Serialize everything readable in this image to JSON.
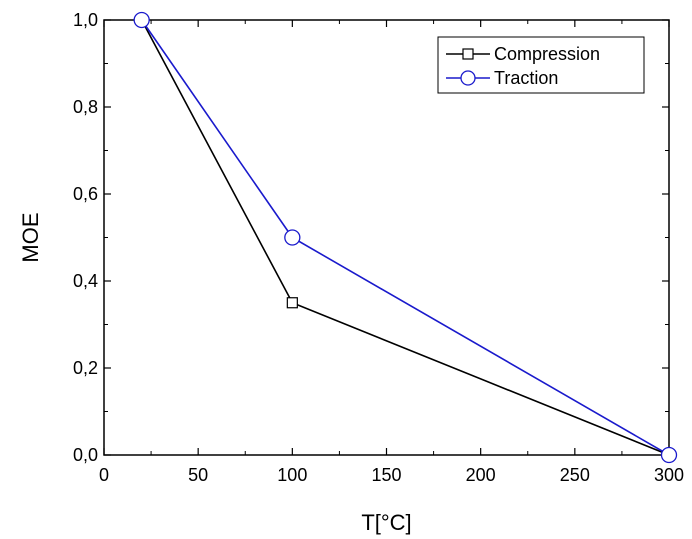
{
  "chart_data": {
    "type": "line",
    "title": "",
    "xlabel": "T[°C]",
    "ylabel": "MOE",
    "xlim": [
      0,
      300
    ],
    "ylim": [
      0.0,
      1.0
    ],
    "x_ticks": [
      0,
      50,
      100,
      150,
      200,
      250,
      300
    ],
    "x_tick_labels": [
      "0",
      "50",
      "100",
      "150",
      "200",
      "250",
      "300"
    ],
    "y_ticks": [
      0.0,
      0.2,
      0.4,
      0.6,
      0.8,
      1.0
    ],
    "y_tick_labels": [
      "0,0",
      "0,2",
      "0,4",
      "0,6",
      "0,8",
      "1,0"
    ],
    "grid": false,
    "legend_position": "top-right",
    "series": [
      {
        "name": "Compression",
        "color": "#000000",
        "marker": "square",
        "x": [
          20,
          100,
          300
        ],
        "y": [
          1.0,
          0.35,
          0.0
        ]
      },
      {
        "name": "Traction",
        "color": "#1a1acc",
        "marker": "circle",
        "x": [
          20,
          100,
          300
        ],
        "y": [
          1.0,
          0.5,
          0.0
        ]
      }
    ]
  }
}
